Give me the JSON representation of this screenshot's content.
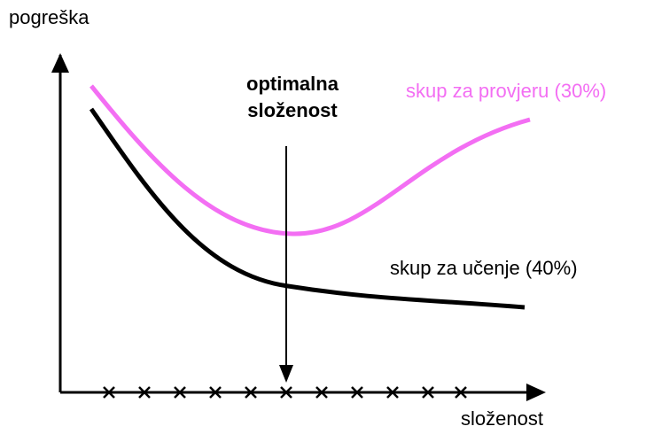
{
  "axes": {
    "y_label": "pogreška",
    "x_label": "složenost"
  },
  "annotation": {
    "lines": [
      "optimalna",
      "složenost"
    ]
  },
  "curves": [
    {
      "label": "skup za provjeru (30%)"
    },
    {
      "label": "skup za učenje (40%)"
    }
  ]
}
